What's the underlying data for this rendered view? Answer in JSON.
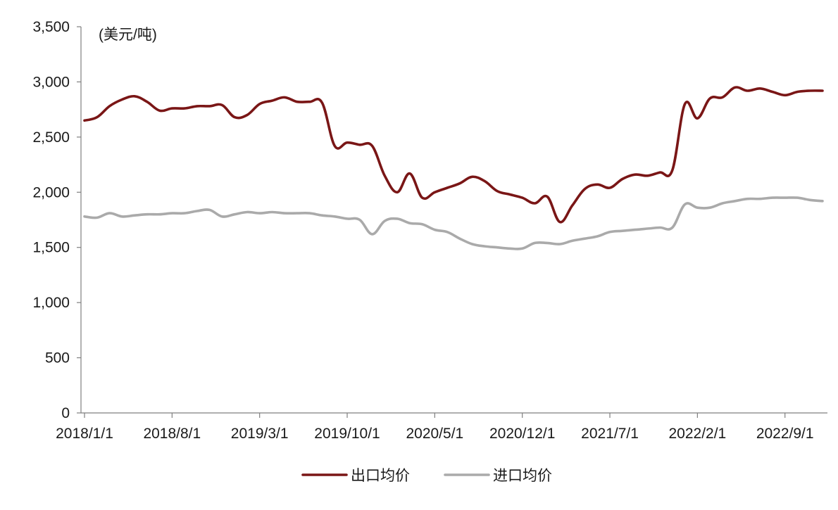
{
  "chart_data": {
    "type": "line",
    "unit": "(美元/吨)",
    "ylim": [
      0,
      3500
    ],
    "yticks": [
      0,
      500,
      1000,
      1500,
      2000,
      2500,
      3000,
      3500
    ],
    "ytick_labels": [
      "0",
      "500",
      "1,000",
      "1,500",
      "2,000",
      "2,500",
      "3,000",
      "3,500"
    ],
    "xlim": [
      "2018/1/1",
      "2022/12/1"
    ],
    "xticks": [
      "2018/1/1",
      "2018/8/1",
      "2019/3/1",
      "2019/10/1",
      "2020/5/1",
      "2020/12/1",
      "2021/7/1",
      "2022/2/1",
      "2022/9/1"
    ],
    "grid": false,
    "legend_position": "bottom",
    "x": [
      "2018/1/1",
      "2018/2/1",
      "2018/3/1",
      "2018/4/1",
      "2018/5/1",
      "2018/6/1",
      "2018/7/1",
      "2018/8/1",
      "2018/9/1",
      "2018/10/1",
      "2018/11/1",
      "2018/12/1",
      "2019/1/1",
      "2019/2/1",
      "2019/3/1",
      "2019/4/1",
      "2019/5/1",
      "2019/6/1",
      "2019/7/1",
      "2019/8/1",
      "2019/9/1",
      "2019/10/1",
      "2019/11/1",
      "2019/12/1",
      "2020/1/1",
      "2020/2/1",
      "2020/3/1",
      "2020/4/1",
      "2020/5/1",
      "2020/6/1",
      "2020/7/1",
      "2020/8/1",
      "2020/9/1",
      "2020/10/1",
      "2020/11/1",
      "2020/12/1",
      "2021/1/1",
      "2021/2/1",
      "2021/3/1",
      "2021/4/1",
      "2021/5/1",
      "2021/6/1",
      "2021/7/1",
      "2021/8/1",
      "2021/9/1",
      "2021/10/1",
      "2021/11/1",
      "2021/12/1",
      "2022/1/1",
      "2022/2/1",
      "2022/3/1",
      "2022/4/1",
      "2022/5/1",
      "2022/6/1",
      "2022/7/1",
      "2022/8/1",
      "2022/9/1",
      "2022/10/1",
      "2022/11/1",
      "2022/12/1"
    ],
    "series": [
      {
        "name": "出口均价",
        "color": "#7a1616",
        "values": [
          2650,
          2680,
          2780,
          2840,
          2870,
          2820,
          2740,
          2760,
          2760,
          2780,
          2780,
          2790,
          2680,
          2700,
          2800,
          2830,
          2860,
          2820,
          2820,
          2810,
          2420,
          2450,
          2430,
          2420,
          2150,
          2000,
          2170,
          1950,
          2000,
          2040,
          2080,
          2140,
          2100,
          2010,
          1980,
          1950,
          1900,
          1960,
          1730,
          1880,
          2030,
          2070,
          2040,
          2120,
          2160,
          2150,
          2180,
          2200,
          2800,
          2670,
          2850,
          2860,
          2950,
          2920,
          2940,
          2910,
          2880,
          2910,
          2920,
          2920
        ]
      },
      {
        "name": "进口均价",
        "color": "#aaaaaa",
        "values": [
          1780,
          1770,
          1810,
          1780,
          1790,
          1800,
          1800,
          1810,
          1810,
          1830,
          1840,
          1780,
          1800,
          1820,
          1810,
          1820,
          1810,
          1810,
          1810,
          1790,
          1780,
          1760,
          1750,
          1620,
          1740,
          1760,
          1720,
          1710,
          1660,
          1640,
          1580,
          1530,
          1510,
          1500,
          1490,
          1490,
          1540,
          1540,
          1530,
          1560,
          1580,
          1600,
          1640,
          1650,
          1660,
          1670,
          1680,
          1680,
          1890,
          1860,
          1860,
          1900,
          1920,
          1940,
          1940,
          1950,
          1950,
          1950,
          1930,
          1920
        ]
      }
    ]
  }
}
